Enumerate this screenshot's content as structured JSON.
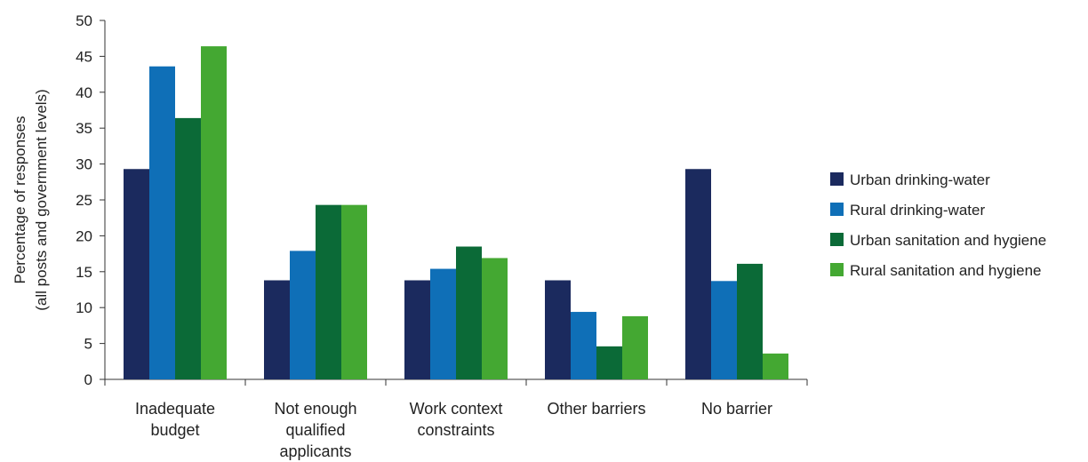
{
  "chart_data": {
    "type": "bar",
    "ylabel": [
      "Percentage of responses",
      "(all posts and government levels)"
    ],
    "ylim": [
      0,
      50
    ],
    "yticks": [
      0,
      5,
      10,
      15,
      20,
      25,
      30,
      35,
      40,
      45,
      50
    ],
    "grid": false,
    "legend_position": "right",
    "categories": [
      [
        "Inadequate",
        "budget"
      ],
      [
        "Not enough",
        "qualified",
        "applicants"
      ],
      [
        "Work context",
        "constraints"
      ],
      [
        "Other barriers"
      ],
      [
        "No barrier"
      ]
    ],
    "series": [
      {
        "name": "Urban drinking-water",
        "color": "#1b2a5e",
        "values": [
          29.3,
          13.8,
          13.8,
          13.8,
          29.3
        ]
      },
      {
        "name": "Rural drinking-water",
        "color": "#0f6fb7",
        "values": [
          43.6,
          17.9,
          15.4,
          9.4,
          13.7
        ]
      },
      {
        "name": "Urban sanitation and hygiene",
        "color": "#0b6a37",
        "values": [
          36.4,
          24.3,
          18.5,
          4.6,
          16.1
        ]
      },
      {
        "name": "Rural sanitation and hygiene",
        "color": "#44a832",
        "values": [
          46.4,
          24.3,
          16.9,
          8.8,
          3.6
        ]
      }
    ]
  }
}
